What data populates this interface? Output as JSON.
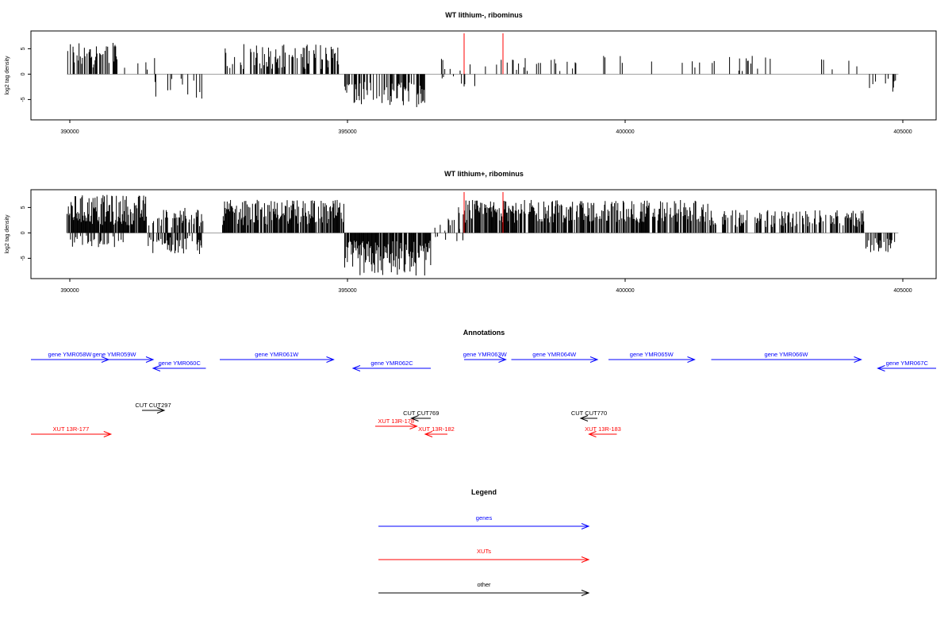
{
  "chart_data": [
    {
      "type": "bar",
      "title": "WT lithium-, ribominus",
      "ylabel": "log2 tag density",
      "xlabel": "",
      "xlim": [
        389300,
        405600
      ],
      "ylim": [
        -9,
        8.5
      ],
      "xticks": [
        390000,
        395000,
        400000,
        405000
      ],
      "yticks": [
        -5,
        0,
        5
      ],
      "markers": [
        397100,
        397800
      ],
      "marker_color": "#ff0000",
      "regions": [
        {
          "x0": 389950,
          "x1": 390900,
          "lo": 1.2,
          "hi": 6.5,
          "density": 0.5
        },
        {
          "x0": 390950,
          "x1": 391700,
          "lo": 0.5,
          "hi": 3.5,
          "density": 0.12
        },
        {
          "x0": 391500,
          "x1": 392400,
          "lo": -5.0,
          "hi": -0.5,
          "density": 0.2
        },
        {
          "x0": 392750,
          "x1": 394900,
          "lo": 1.0,
          "hi": 6.0,
          "density": 0.45
        },
        {
          "x0": 394950,
          "x1": 396400,
          "lo": -6.5,
          "hi": -1.5,
          "density": 0.55
        },
        {
          "x0": 396500,
          "x1": 397600,
          "lo": -2.5,
          "hi": 3.5,
          "density": 0.08
        },
        {
          "x0": 397600,
          "x1": 399300,
          "lo": 0.5,
          "hi": 3.5,
          "density": 0.15
        },
        {
          "x0": 399300,
          "x1": 404200,
          "lo": 0.5,
          "hi": 3.8,
          "density": 0.05
        },
        {
          "x0": 404400,
          "x1": 404900,
          "lo": -3.5,
          "hi": -0.5,
          "density": 0.3
        }
      ]
    },
    {
      "type": "bar",
      "title": "WT lithium+, ribominus",
      "ylabel": "log2 tag density",
      "xlabel": "",
      "xlim": [
        389300,
        405600
      ],
      "ylim": [
        -9,
        8.5
      ],
      "xticks": [
        390000,
        395000,
        400000,
        405000
      ],
      "yticks": [
        -5,
        0,
        5
      ],
      "markers": [
        397100,
        397800
      ],
      "marker_color": "#ff0000",
      "regions": [
        {
          "x0": 389950,
          "x1": 391400,
          "lo": 1.5,
          "hi": 7.5,
          "density": 0.9
        },
        {
          "x0": 390000,
          "x1": 391000,
          "lo": -3.0,
          "hi": -0.5,
          "density": 0.3
        },
        {
          "x0": 391400,
          "x1": 392400,
          "lo": 1.0,
          "hi": 5.0,
          "density": 0.5
        },
        {
          "x0": 391400,
          "x1": 392400,
          "lo": -4.5,
          "hi": -0.5,
          "density": 0.5
        },
        {
          "x0": 392750,
          "x1": 394950,
          "lo": 1.5,
          "hi": 6.5,
          "density": 0.8
        },
        {
          "x0": 394950,
          "x1": 396500,
          "lo": -8.5,
          "hi": -1.5,
          "density": 0.9
        },
        {
          "x0": 396550,
          "x1": 397100,
          "lo": -3.0,
          "hi": 3.0,
          "density": 0.2
        },
        {
          "x0": 397000,
          "x1": 401500,
          "lo": 2.0,
          "hi": 6.5,
          "density": 0.7
        },
        {
          "x0": 401500,
          "x1": 404300,
          "lo": 1.0,
          "hi": 4.5,
          "density": 0.5
        },
        {
          "x0": 404300,
          "x1": 404900,
          "lo": -4.0,
          "hi": -1.0,
          "density": 0.5
        }
      ]
    }
  ],
  "annotations": {
    "title": "Annotations",
    "xlim": [
      389300,
      405600
    ],
    "features": [
      {
        "label": "gene YMR058W",
        "x0": 389300,
        "x1": 390700,
        "row": 0,
        "color": "#0000ff"
      },
      {
        "label": "gene YMR059W",
        "x0": 390100,
        "x1": 391500,
        "row": 0,
        "color": "#0000ff"
      },
      {
        "label": "gene YMR060C",
        "x0": 392450,
        "x1": 391500,
        "row": 1,
        "color": "#0000ff"
      },
      {
        "label": "gene YMR061W",
        "x0": 392700,
        "x1": 394750,
        "row": 0,
        "color": "#0000ff"
      },
      {
        "label": "gene YMR062C",
        "x0": 396500,
        "x1": 395100,
        "row": 1,
        "color": "#0000ff"
      },
      {
        "label": "gene YMR063W",
        "x0": 397100,
        "x1": 397850,
        "row": 0,
        "color": "#0000ff"
      },
      {
        "label": "gene YMR064W",
        "x0": 397950,
        "x1": 399500,
        "row": 0,
        "color": "#0000ff"
      },
      {
        "label": "gene YMR065W",
        "x0": 399700,
        "x1": 401250,
        "row": 0,
        "color": "#0000ff"
      },
      {
        "label": "gene YMR066W",
        "x0": 401550,
        "x1": 404250,
        "row": 0,
        "color": "#0000ff"
      },
      {
        "label": "gene YMR067C",
        "x0": 405600,
        "x1": 404550,
        "row": 1,
        "color": "#0000ff"
      },
      {
        "label": "CUT CUT297",
        "x0": 391300,
        "x1": 391700,
        "row": 2,
        "color": "#000000"
      },
      {
        "label": "CUT CUT769",
        "x0": 396500,
        "x1": 396150,
        "row": 3,
        "color": "#000000"
      },
      {
        "label": "CUT CUT770",
        "x0": 399500,
        "x1": 399200,
        "row": 3,
        "color": "#000000"
      },
      {
        "label": "XUT 13R-177",
        "x0": 389300,
        "x1": 390740,
        "row": 5,
        "color": "#ff0000"
      },
      {
        "label": "XUT 13R-178",
        "x0": 395500,
        "x1": 396250,
        "row": 4,
        "color": "#ff0000"
      },
      {
        "label": "XUT 13R-182",
        "x0": 396800,
        "x1": 396400,
        "row": 5,
        "color": "#ff0000"
      },
      {
        "label": "XUT 13R-183",
        "x0": 399850,
        "x1": 399350,
        "row": 5,
        "color": "#ff0000"
      }
    ]
  },
  "legend": {
    "title": "Legend",
    "items": [
      {
        "label": "genes",
        "color": "#0000ff"
      },
      {
        "label": "XUTs",
        "color": "#ff0000"
      },
      {
        "label": "other",
        "color": "#000000"
      }
    ]
  }
}
